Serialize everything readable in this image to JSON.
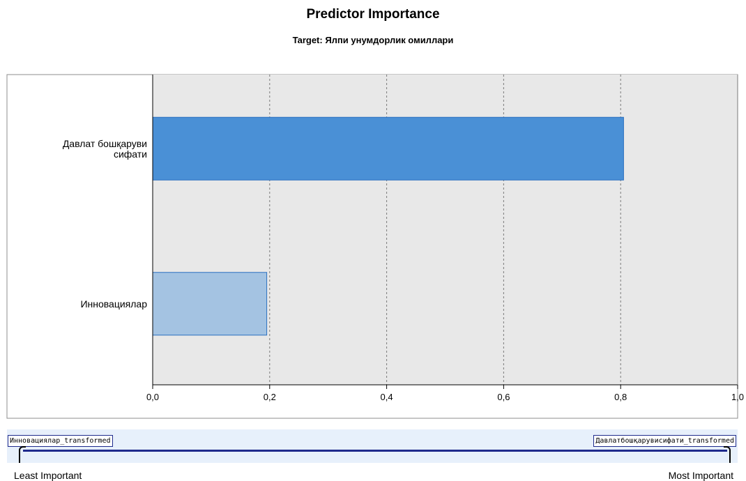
{
  "chart_data": {
    "type": "bar",
    "orientation": "horizontal",
    "title": "Predictor Importance",
    "subtitle": "Target: Ялпи унумдорлик омиллари",
    "categories": [
      [
        "Давлат бошқаруви",
        "сифати"
      ],
      [
        "Инновациялар"
      ]
    ],
    "values": [
      0.805,
      0.195
    ],
    "bar_colors": [
      "#4a90d6",
      "#a4c3e2"
    ],
    "bar_border_color": "#2a6fc0",
    "xlim": [
      0,
      1.0
    ],
    "xticks": [
      "0,0",
      "0,2",
      "0,4",
      "0,6",
      "0,8",
      "1,0"
    ],
    "xtick_values": [
      0,
      0.2,
      0.4,
      0.6,
      0.8,
      1.0
    ],
    "grid": true,
    "plot_background": "#e8e8e8"
  },
  "slider": {
    "left_label": "Инновациялар_transformed",
    "right_label": "Давлатбошқарувисифати_transformed",
    "least_label": "Least Important",
    "most_label": "Most Important",
    "track_color": "#1e2a8c"
  }
}
